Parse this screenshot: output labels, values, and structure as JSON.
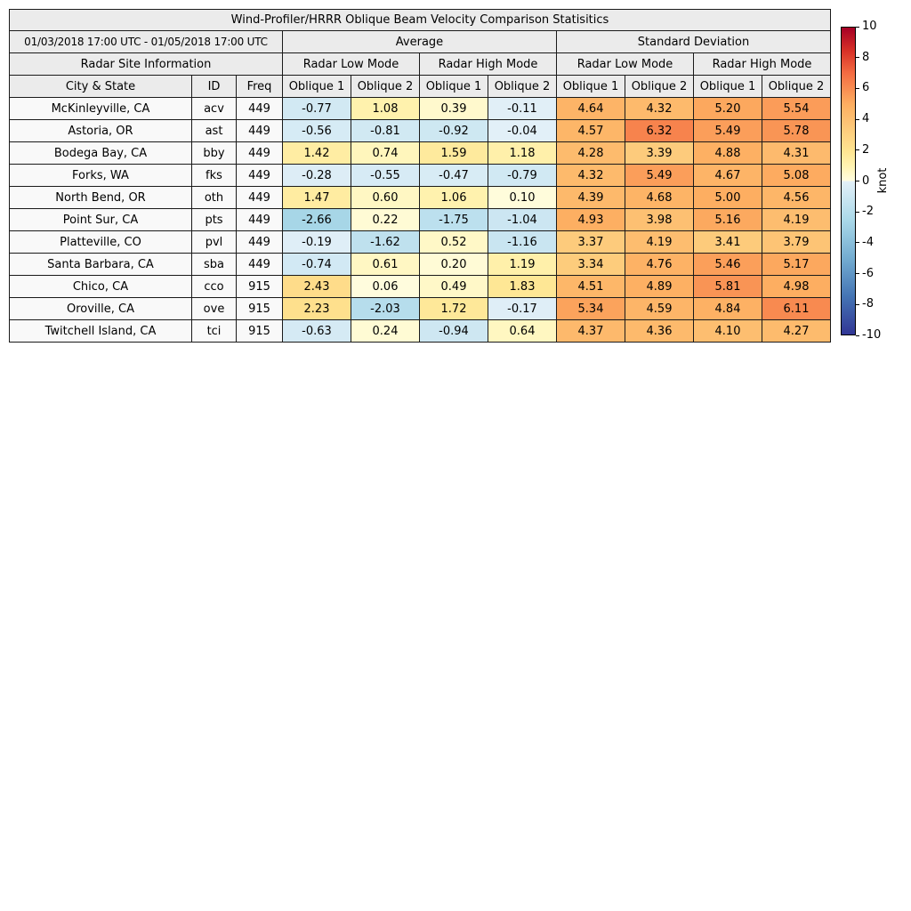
{
  "header": {
    "title": "Wind-Profiler/HRRR Oblique Beam Velocity Comparison Statisitics",
    "date_range": "01/03/2018 17:00 UTC - 01/05/2018 17:00 UTC",
    "avg_label": "Average",
    "std_label": "Standard Deviation",
    "site_info_label": "Radar Site Information",
    "low_mode_label": "Radar Low Mode",
    "high_mode_label": "Radar High Mode",
    "city_label": "City & State",
    "id_label": "ID",
    "freq_label": "Freq",
    "oblique1_label": "Oblique 1",
    "oblique2_label": "Oblique 2"
  },
  "colorbar": {
    "label": "knot",
    "min": -10,
    "max": 10,
    "ticks": [
      10,
      8,
      6,
      4,
      2,
      0,
      -2,
      -4,
      -6,
      -8,
      -10
    ],
    "negative_stops": [
      [
        0,
        "#e3f0f8"
      ],
      [
        -2.5,
        "#abd9e9"
      ],
      [
        -5,
        "#74add1"
      ],
      [
        -7.5,
        "#4575b4"
      ],
      [
        -10,
        "#313695"
      ]
    ],
    "positive_stops": [
      [
        0,
        "#fffde0"
      ],
      [
        1,
        "#fff3b0"
      ],
      [
        2,
        "#fee490"
      ],
      [
        3.5,
        "#fdc97a"
      ],
      [
        5,
        "#fdae61"
      ],
      [
        7,
        "#f46d43"
      ],
      [
        8.5,
        "#d73027"
      ],
      [
        10,
        "#a50026"
      ]
    ]
  },
  "chart_data": {
    "type": "heatmap",
    "title": "Wind-Profiler/HRRR Oblique Beam Velocity Comparison Statisitics",
    "subtitle": "01/03/2018 17:00 UTC - 01/05/2018 17:00 UTC",
    "unit": "knot",
    "value_range": [
      -10,
      10
    ],
    "legend_position": "right-colorbar",
    "columns": {
      "site": [
        "City & State",
        "ID",
        "Freq"
      ],
      "groups": [
        {
          "group": "Average",
          "modes": [
            {
              "mode": "Radar Low Mode",
              "cols": [
                "Oblique 1",
                "Oblique 2"
              ]
            },
            {
              "mode": "Radar High Mode",
              "cols": [
                "Oblique 1",
                "Oblique 2"
              ]
            }
          ]
        },
        {
          "group": "Standard Deviation",
          "modes": [
            {
              "mode": "Radar Low Mode",
              "cols": [
                "Oblique 1",
                "Oblique 2"
              ]
            },
            {
              "mode": "Radar High Mode",
              "cols": [
                "Oblique 1",
                "Oblique 2"
              ]
            }
          ]
        }
      ]
    },
    "rows": [
      {
        "city": "McKinleyville, CA",
        "id": "acv",
        "freq": "449",
        "values": [
          -0.77,
          1.08,
          0.39,
          -0.11,
          4.64,
          4.32,
          5.2,
          5.54
        ]
      },
      {
        "city": "Astoria, OR",
        "id": "ast",
        "freq": "449",
        "values": [
          -0.56,
          -0.81,
          -0.92,
          -0.04,
          4.57,
          6.32,
          5.49,
          5.78
        ]
      },
      {
        "city": "Bodega Bay, CA",
        "id": "bby",
        "freq": "449",
        "values": [
          1.42,
          0.74,
          1.59,
          1.18,
          4.28,
          3.39,
          4.88,
          4.31
        ]
      },
      {
        "city": "Forks, WA",
        "id": "fks",
        "freq": "449",
        "values": [
          -0.28,
          -0.55,
          -0.47,
          -0.79,
          4.32,
          5.49,
          4.67,
          5.08
        ]
      },
      {
        "city": "North Bend, OR",
        "id": "oth",
        "freq": "449",
        "values": [
          1.47,
          0.6,
          1.06,
          0.1,
          4.39,
          4.68,
          5.0,
          4.56
        ]
      },
      {
        "city": "Point Sur, CA",
        "id": "pts",
        "freq": "449",
        "values": [
          -2.66,
          0.22,
          -1.75,
          -1.04,
          4.93,
          3.98,
          5.16,
          4.19
        ]
      },
      {
        "city": "Platteville, CO",
        "id": "pvl",
        "freq": "449",
        "values": [
          -0.19,
          -1.62,
          0.52,
          -1.16,
          3.37,
          4.19,
          3.41,
          3.79
        ]
      },
      {
        "city": "Santa Barbara, CA",
        "id": "sba",
        "freq": "449",
        "values": [
          -0.74,
          0.61,
          0.2,
          1.19,
          3.34,
          4.76,
          5.46,
          5.17
        ]
      },
      {
        "city": "Chico, CA",
        "id": "cco",
        "freq": "915",
        "values": [
          2.43,
          0.06,
          0.49,
          1.83,
          4.51,
          4.89,
          5.81,
          4.98
        ]
      },
      {
        "city": "Oroville, CA",
        "id": "ove",
        "freq": "915",
        "values": [
          2.23,
          -2.03,
          1.72,
          -0.17,
          5.34,
          4.59,
          4.84,
          6.11
        ]
      },
      {
        "city": "Twitchell Island, CA",
        "id": "tci",
        "freq": "915",
        "values": [
          -0.63,
          0.24,
          -0.94,
          0.64,
          4.37,
          4.36,
          4.1,
          4.27
        ]
      }
    ]
  }
}
